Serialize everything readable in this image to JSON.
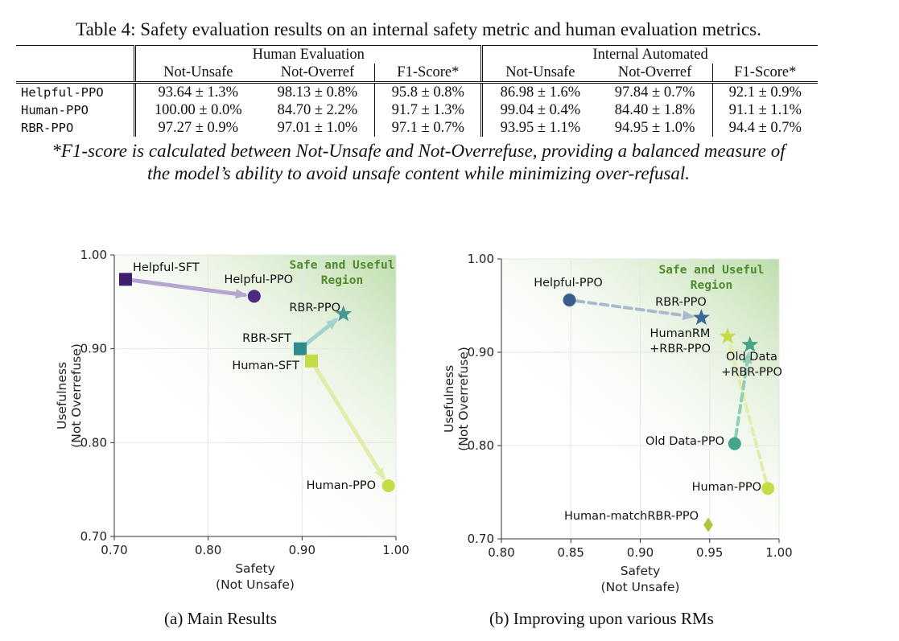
{
  "table": {
    "caption": "Table 4: Safety evaluation results on an internal safety metric and human evaluation metrics.",
    "group_headers": [
      "Human Evaluation",
      "Internal Automated"
    ],
    "col_headers": [
      "Not-Unsafe",
      "Not-Overref",
      "F1-Score*",
      "Not-Unsafe",
      "Not-Overref",
      "F1-Score*"
    ],
    "rows": [
      {
        "model": "Helpful-PPO",
        "cells": [
          "93.64 ± 1.3%",
          "98.13 ± 0.8%",
          "95.8 ± 0.8%",
          "86.98 ± 1.6%",
          "97.84 ± 0.7%",
          "92.1 ± 0.9%"
        ]
      },
      {
        "model": "Human-PPO",
        "cells": [
          "100.00 ± 0.0%",
          "84.70 ± 2.2%",
          "91.7 ± 1.3%",
          "99.04 ± 0.4%",
          "84.40 ± 1.8%",
          "91.1 ± 1.1%"
        ]
      },
      {
        "model": "RBR-PPO",
        "cells": [
          "97.27 ± 0.9%",
          "97.01 ± 1.0%",
          "97.1 ± 0.7%",
          "93.95 ± 1.1%",
          "94.95 ± 1.0%",
          "94.4 ± 0.7%"
        ]
      }
    ],
    "footnote_line1": "*F1-score is calculated between Not-Unsafe and Not-Overrefuse, providing a balanced measure of",
    "footnote_line2": "the model’s ability to avoid unsafe content while minimizing over-refusal."
  },
  "chart_data": [
    {
      "type": "scatter",
      "caption": "(a) Main Results",
      "xlabel": [
        "Safety",
        "(Not Unsafe)"
      ],
      "ylabel": [
        "Usefulness",
        "(Not Overrefuse)"
      ],
      "xlim": [
        0.7,
        1.0
      ],
      "ylim": [
        0.7,
        1.0
      ],
      "xticks": [
        "0.70",
        "0.80",
        "0.90",
        "1.00"
      ],
      "yticks": [
        "0.70",
        "0.80",
        "0.90",
        "1.00"
      ],
      "region_label": [
        "Safe and Useful",
        "Region"
      ],
      "points": [
        {
          "name": "Helpful-SFT",
          "x": 0.712,
          "y": 0.974,
          "marker": "square",
          "color": "#3f1f6b"
        },
        {
          "name": "Helpful-PPO",
          "x": 0.849,
          "y": 0.956,
          "marker": "circle",
          "color": "#4b2a80"
        },
        {
          "name": "RBR-SFT",
          "x": 0.898,
          "y": 0.9,
          "marker": "square",
          "color": "#2f8c8c"
        },
        {
          "name": "RBR-PPO",
          "x": 0.944,
          "y": 0.937,
          "marker": "star",
          "color": "#46998e"
        },
        {
          "name": "Human-SFT",
          "x": 0.91,
          "y": 0.887,
          "marker": "square",
          "color": "#c6dc45"
        },
        {
          "name": "Human-PPO",
          "x": 0.992,
          "y": 0.754,
          "marker": "circle",
          "color": "#c6dc45"
        }
      ],
      "arrows": [
        {
          "from": "Helpful-SFT",
          "to": "Helpful-PPO",
          "color": "#b4a6d0"
        },
        {
          "from": "RBR-SFT",
          "to": "RBR-PPO",
          "color": "#a4d4cf"
        },
        {
          "from": "Human-SFT",
          "to": "Human-PPO",
          "color": "#e2ecab"
        }
      ]
    },
    {
      "type": "scatter",
      "caption": "(b) Improving upon various RMs",
      "xlabel": [
        "Safety",
        "(Not Unsafe)"
      ],
      "ylabel": [
        "Usefulness",
        "(Not Overrefuse)"
      ],
      "xlim": [
        0.8,
        1.0
      ],
      "ylim": [
        0.7,
        1.0
      ],
      "xticks": [
        "0.80",
        "0.85",
        "0.90",
        "0.95",
        "1.00"
      ],
      "yticks": [
        "0.70",
        "0.80",
        "0.90",
        "1.00"
      ],
      "region_label": [
        "Safe and Useful",
        "Region"
      ],
      "points": [
        {
          "name": "Helpful-PPO",
          "x": 0.849,
          "y": 0.956,
          "marker": "circle",
          "color": "#3a5f8e"
        },
        {
          "name": "RBR-PPO",
          "x": 0.944,
          "y": 0.937,
          "marker": "star",
          "color": "#3d6a94"
        },
        {
          "name": "HumanRM +RBR-PPO",
          "x": 0.963,
          "y": 0.917,
          "marker": "star",
          "color": "#c6dc45"
        },
        {
          "name": "Old Data +RBR-PPO",
          "x": 0.979,
          "y": 0.908,
          "marker": "star",
          "color": "#46a487"
        },
        {
          "name": "Old Data-PPO",
          "x": 0.968,
          "y": 0.802,
          "marker": "circle",
          "color": "#46a487"
        },
        {
          "name": "Human-PPO",
          "x": 0.992,
          "y": 0.754,
          "marker": "circle",
          "color": "#c6dc45"
        },
        {
          "name": "Human-matchRBR-PPO",
          "x": 0.949,
          "y": 0.715,
          "marker": "diamond",
          "color": "#a8c93f"
        }
      ],
      "arrows": [
        {
          "from": "Helpful-PPO",
          "to": "RBR-PPO",
          "color": "#a9b9cf"
        },
        {
          "from": "Human-PPO",
          "to": "HumanRM +RBR-PPO",
          "color": "#e2ecab"
        },
        {
          "from": "Old Data-PPO",
          "to": "Old Data +RBR-PPO",
          "color": "#92cdb6"
        }
      ]
    }
  ]
}
